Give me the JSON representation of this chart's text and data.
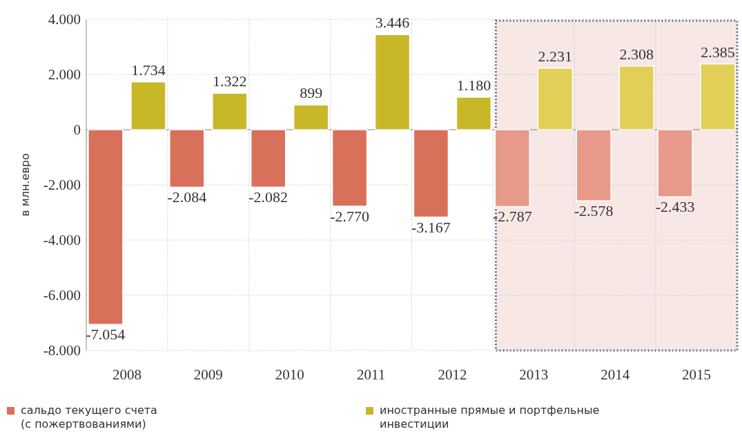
{
  "chart_data": {
    "type": "bar",
    "ylabel": "в млн.евро",
    "categories": [
      "2008",
      "2009",
      "2010",
      "2011",
      "2012",
      "2013",
      "2014",
      "2015"
    ],
    "series": [
      {
        "name": "сальдо текущего счета (с пожертвованиями)",
        "color": "#d9705a",
        "colors": [
          "#d9705a",
          "#d9705a",
          "#d9705a",
          "#d9705a",
          "#d9705a",
          "#e89a8a",
          "#e89a8a",
          "#e89a8a"
        ],
        "values": [
          -7054,
          -2084,
          -2082,
          -2770,
          -3167,
          -2787,
          -2578,
          -2433
        ],
        "value_labels": [
          "-7.054",
          "-2.084",
          "-2.082",
          "-2.770",
          "-3.167",
          "-2.787",
          "-2.578",
          "-2.433"
        ]
      },
      {
        "name": "иностранные прямые и портфельные инвестиции",
        "color": "#c8b828",
        "colors": [
          "#c8b828",
          "#c8b828",
          "#c8b828",
          "#c8b828",
          "#c8b828",
          "#e2cf58",
          "#e2cf58",
          "#e2cf58"
        ],
        "values": [
          1734,
          1322,
          899,
          3446,
          1180,
          2231,
          2308,
          2385
        ],
        "value_labels": [
          "1.734",
          "1.322",
          "899",
          "3.446",
          "1.180",
          "2.231",
          "2.308",
          "2.385"
        ]
      }
    ],
    "ylim": [
      -8000,
      4000
    ],
    "yticks": [
      {
        "value": -8000,
        "label": "-8.000"
      },
      {
        "value": -6000,
        "label": "-6.000"
      },
      {
        "value": -4000,
        "label": "-4.000"
      },
      {
        "value": -2000,
        "label": "-2.000"
      },
      0,
      {
        "value": 2000,
        "label": "2.000"
      },
      {
        "value": 4000,
        "label": "4.000"
      }
    ],
    "bands": [
      {
        "axis": "x",
        "from": "2013",
        "to": "2015",
        "color": "#f7e8e5"
      }
    ],
    "grid": true,
    "legend": "bottom"
  }
}
